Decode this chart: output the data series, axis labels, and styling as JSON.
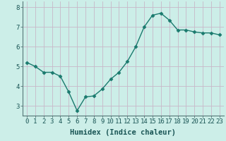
{
  "x": [
    0,
    1,
    2,
    3,
    4,
    5,
    6,
    7,
    8,
    9,
    10,
    11,
    12,
    13,
    14,
    15,
    16,
    17,
    18,
    19,
    20,
    21,
    22,
    23
  ],
  "y": [
    5.2,
    5.0,
    4.7,
    4.7,
    4.5,
    3.7,
    2.75,
    3.45,
    3.5,
    3.85,
    4.35,
    4.7,
    5.25,
    6.0,
    7.0,
    7.6,
    7.7,
    7.35,
    6.85,
    6.85,
    6.75,
    6.7,
    6.7,
    6.6
  ],
  "line_color": "#1a7a6e",
  "marker": "D",
  "marker_size": 2.5,
  "linewidth": 1.0,
  "xlabel": "Humidex (Indice chaleur)",
  "bg_color": "#cceee8",
  "grid_color": "#c8b8c8",
  "ylim": [
    2.5,
    8.3
  ],
  "xlim": [
    -0.5,
    23.5
  ],
  "yticks": [
    3,
    4,
    5,
    6,
    7,
    8
  ],
  "xticks": [
    0,
    1,
    2,
    3,
    4,
    5,
    6,
    7,
    8,
    9,
    10,
    11,
    12,
    13,
    14,
    15,
    16,
    17,
    18,
    19,
    20,
    21,
    22,
    23
  ],
  "xlabel_fontsize": 7.5,
  "tick_fontsize": 6.5,
  "spine_color": "#557777"
}
